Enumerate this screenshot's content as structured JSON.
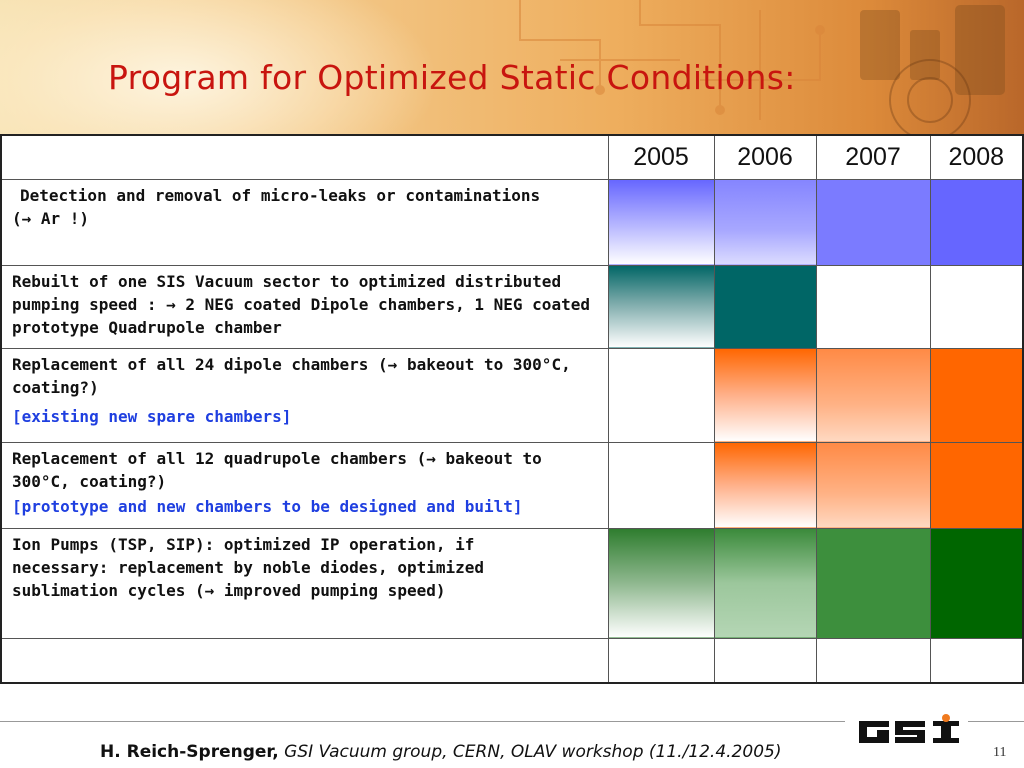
{
  "slide": {
    "title": "Program for Optimized Static Conditions:"
  },
  "table": {
    "years": [
      "2005",
      "2006",
      "2007",
      "2008"
    ],
    "rows": [
      {
        "task": " Detection and removal of micro-leaks or contaminations",
        "task_line2": "(→ Ar !)",
        "note": "",
        "fills": [
          "fade-blue",
          "solid-blue-mid",
          "solid-blue-soft",
          "solid-blue"
        ]
      },
      {
        "task": "Rebuilt of one SIS Vacuum sector to optimized distributed pumping speed : → 2 NEG coated Dipole chambers, 1 NEG coated prototype Quadrupole chamber",
        "task_line2": "",
        "note": "",
        "fills": [
          "fade-teal",
          "solid-teal",
          "none",
          "none"
        ]
      },
      {
        "task": "Replacement of  all 24 dipole chambers (→ bakeout to 300°C, coating?)",
        "task_line2": "",
        "note": "[existing new spare chambers]",
        "fills": [
          "none",
          "fade-orange",
          "fade-orange-soft",
          "solid-orange"
        ]
      },
      {
        "task": "Replacement of all 12 quadrupole chambers (→ bakeout to 300°C, coating?)",
        "task_line2": "",
        "note": "[prototype and new chambers to be designed and built]",
        "fills": [
          "none",
          "fade-orange",
          "fade-orange-soft",
          "solid-orange"
        ]
      },
      {
        "task": "Ion Pumps (TSP, SIP): optimized IP operation, if necessary: replacement by noble diodes, optimized sublimation cycles (→ improved pumping speed)",
        "task_line2": "",
        "note": "",
        "fills": [
          "fade-green",
          "fade-green-light",
          "solid-green-mid",
          "solid-green"
        ]
      },
      {
        "task": "",
        "task_line2": "",
        "note": "",
        "fills": [
          "none",
          "none",
          "none",
          "none"
        ]
      }
    ]
  },
  "colors": {
    "title": "#c8150f",
    "note": "#1f3fe0",
    "blue": "#6666ff",
    "teal": "#006666",
    "orange": "#ff6600",
    "green": "#006600"
  },
  "footer": {
    "author": "H. Reich-Sprenger,",
    "event": " GSI Vacuum group, CERN, OLAV workshop (11./12.4.2005)",
    "page": "11",
    "logo_text": "GSI"
  }
}
